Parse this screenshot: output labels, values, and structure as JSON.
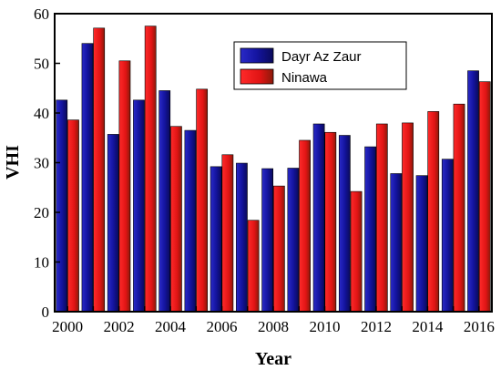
{
  "chart_data": {
    "type": "bar",
    "title": "",
    "xlabel": "Year",
    "ylabel": "VHI",
    "ylim": [
      0,
      60
    ],
    "yticks": [
      0,
      10,
      20,
      30,
      40,
      50,
      60
    ],
    "xtick_labels": [
      "2000",
      "2002",
      "2004",
      "2006",
      "2008",
      "2010",
      "2012",
      "2014",
      "2016"
    ],
    "categories": [
      "2000",
      "2001",
      "2002",
      "2003",
      "2004",
      "2005",
      "2006",
      "2007",
      "2008",
      "2009",
      "2010",
      "2011",
      "2012",
      "2013",
      "2014",
      "2015",
      "2016"
    ],
    "series": [
      {
        "name": "Dayr Az Zaur",
        "color": "#1c1aa8",
        "values": [
          42.6,
          54.0,
          35.7,
          42.6,
          44.5,
          36.5,
          29.2,
          29.9,
          28.8,
          28.9,
          37.8,
          35.5,
          33.2,
          27.8,
          27.4,
          30.7,
          48.5
        ]
      },
      {
        "name": "Ninawa",
        "color": "#e01818",
        "values": [
          38.6,
          57.1,
          50.5,
          57.5,
          37.3,
          44.8,
          31.6,
          18.4,
          25.3,
          34.5,
          36.1,
          24.2,
          37.8,
          38.0,
          40.3,
          41.8,
          46.3
        ]
      }
    ],
    "legend": "top-center",
    "grid": false
  }
}
